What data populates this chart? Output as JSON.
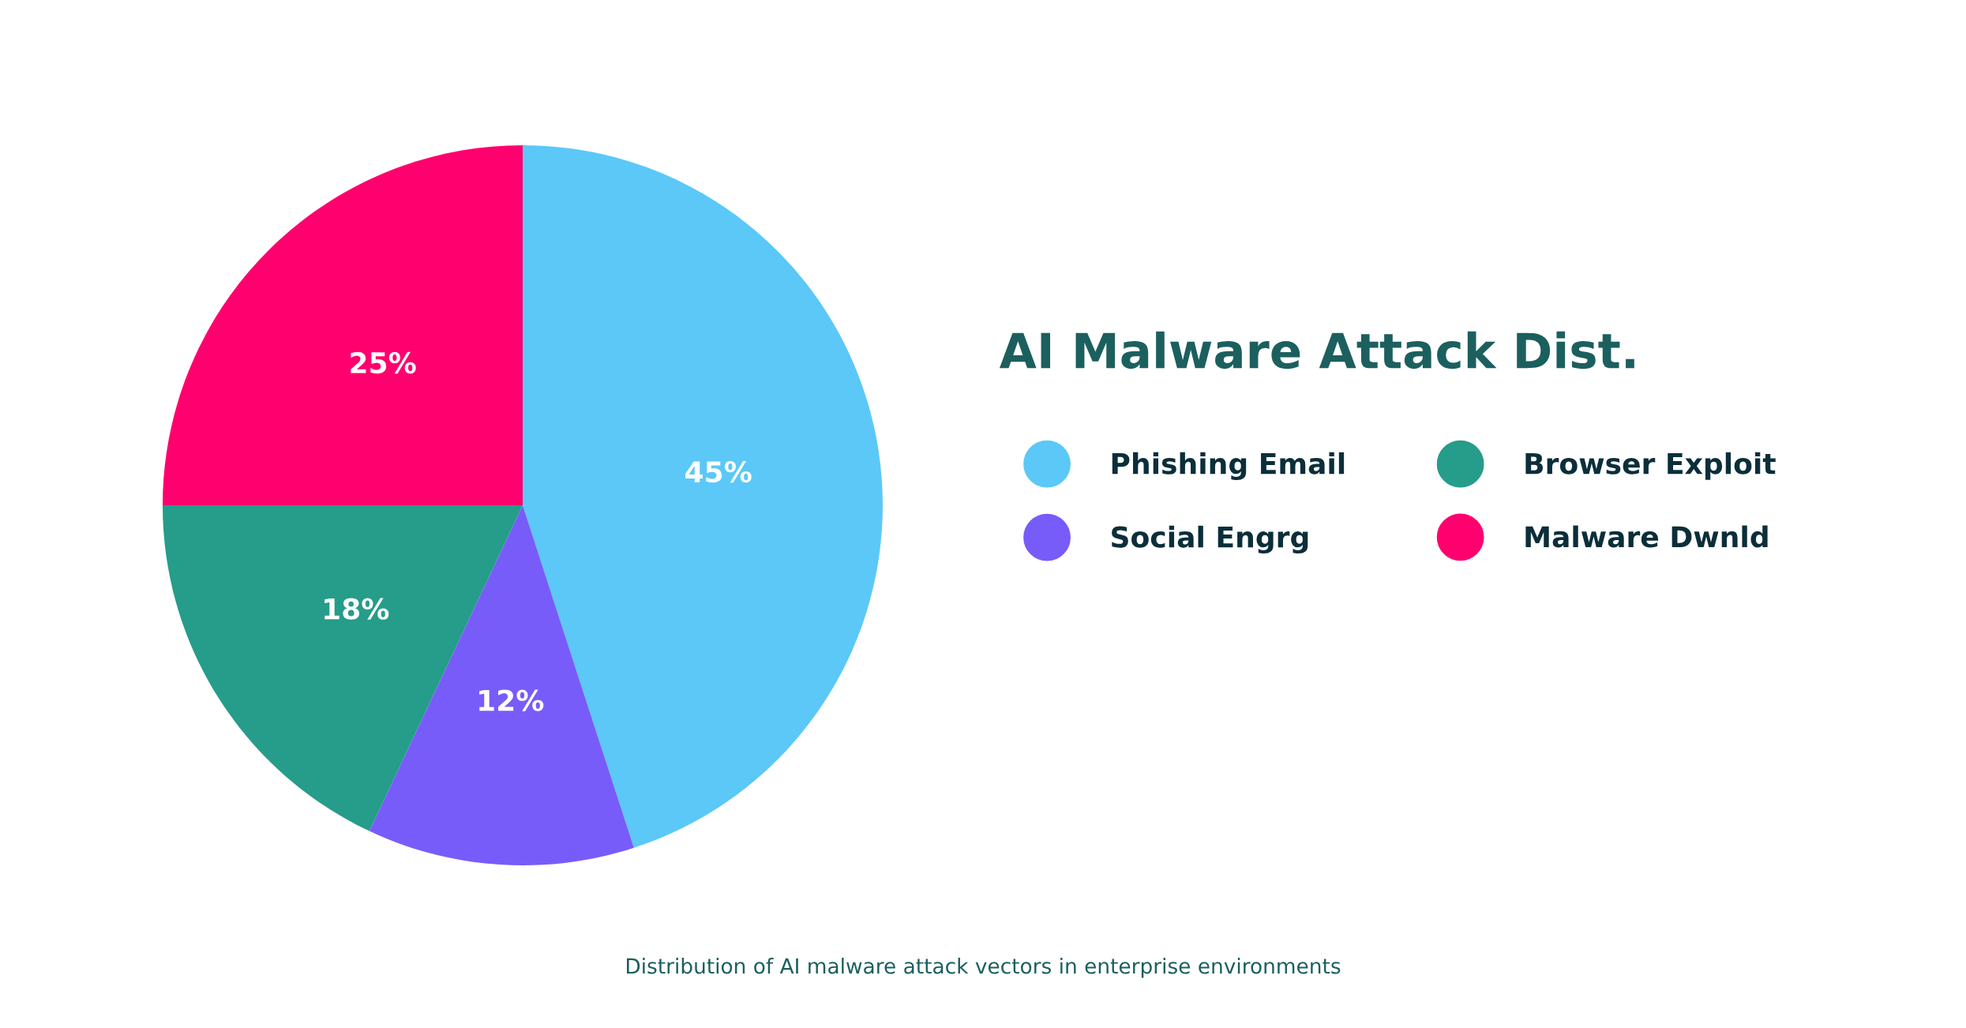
{
  "chart_data": {
    "type": "pie",
    "title": "AI Malware Attack Dist.",
    "categories": [
      "Phishing Email",
      "Social Engrg",
      "Browser Exploit",
      "Malware Dwnld"
    ],
    "values": [
      45,
      12,
      18,
      25
    ],
    "colors": [
      "#5bc8f8",
      "#775cfa",
      "#269c8a",
      "#ff006e"
    ],
    "value_labels": [
      "45%",
      "12%",
      "18%",
      "25%"
    ],
    "legend": "right",
    "annotations": [
      "Distribution of AI malware attack vectors in enterprise environments"
    ]
  }
}
